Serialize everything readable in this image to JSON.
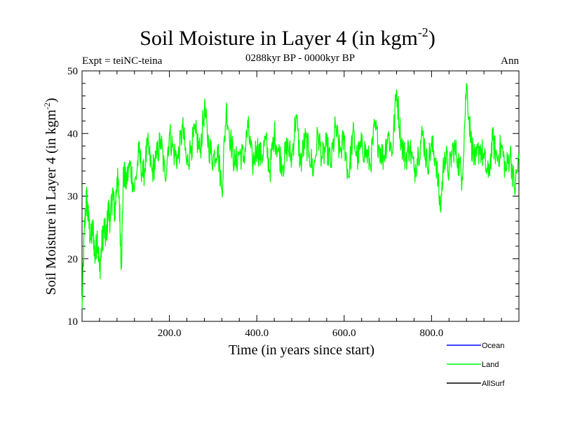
{
  "chart_data": {
    "type": "line",
    "title": "Soil Moisture in Layer 4 (in kgm",
    "title_sup": "-2",
    "title_close": ")",
    "subtitle": "0288kyr BP - 0000kyr BP",
    "left_label": "Expt = teiNC-teina",
    "right_label": "Ann",
    "xlabel": "Time (in years since start)",
    "ylabel": "Soil Moisture in Layer 4 (in kgm",
    "ylabel_sup": "-2",
    "ylabel_close": ")",
    "xlim": [
      0,
      1000
    ],
    "ylim": [
      10,
      50
    ],
    "xticks": [
      200,
      400,
      600,
      800
    ],
    "xtick_labels": [
      "200.0",
      "400.0",
      "600.0",
      "800.0"
    ],
    "yticks": [
      10,
      20,
      30,
      40,
      50
    ],
    "ytick_labels": [
      "10",
      "20",
      "30",
      "40",
      "50"
    ],
    "legend": [
      {
        "name": "Ocean",
        "color": "#0000ff"
      },
      {
        "name": "Land",
        "color": "#00ff00"
      },
      {
        "name": "AllSurf",
        "color": "#000000"
      }
    ],
    "series": [
      {
        "name": "Land",
        "color": "#00ff00",
        "x": [
          0,
          5,
          10,
          15,
          20,
          25,
          30,
          35,
          40,
          45,
          50,
          55,
          60,
          65,
          70,
          75,
          80,
          85,
          90,
          95,
          100,
          110,
          120,
          130,
          140,
          150,
          160,
          170,
          180,
          190,
          200,
          210,
          220,
          230,
          240,
          250,
          260,
          270,
          280,
          290,
          300,
          310,
          320,
          330,
          340,
          350,
          360,
          370,
          380,
          390,
          400,
          410,
          420,
          430,
          440,
          450,
          460,
          470,
          480,
          490,
          500,
          510,
          520,
          530,
          540,
          550,
          560,
          570,
          580,
          590,
          600,
          610,
          620,
          630,
          640,
          650,
          660,
          670,
          680,
          690,
          700,
          710,
          720,
          730,
          740,
          750,
          760,
          770,
          780,
          790,
          800,
          810,
          820,
          830,
          840,
          850,
          860,
          870,
          880,
          890,
          900,
          910,
          920,
          930,
          940,
          950,
          960,
          970,
          980,
          990,
          1000
        ],
        "values": [
          12,
          24,
          30,
          26,
          23,
          25,
          20,
          24,
          18,
          22,
          25,
          23,
          28,
          26,
          31,
          27,
          33,
          30,
          19,
          34,
          32,
          35,
          31,
          37,
          33,
          38,
          34,
          36,
          39,
          33,
          40,
          37,
          36,
          41,
          35,
          38,
          40,
          37,
          44,
          38,
          36,
          38,
          31,
          44,
          39,
          35,
          37,
          36,
          41,
          35,
          38,
          36,
          39,
          34,
          40,
          37,
          35,
          38,
          36,
          43,
          35,
          39,
          37,
          34,
          40,
          36,
          38,
          35,
          41,
          37,
          39,
          33,
          40,
          36,
          38,
          37,
          35,
          41,
          38,
          36,
          40,
          37,
          47,
          39,
          36,
          38,
          34,
          37,
          40,
          35,
          38,
          36,
          28,
          37,
          34,
          38,
          36,
          33,
          48,
          39,
          35,
          38,
          36,
          33,
          39,
          36,
          38,
          34,
          37,
          31,
          36
        ]
      }
    ]
  }
}
